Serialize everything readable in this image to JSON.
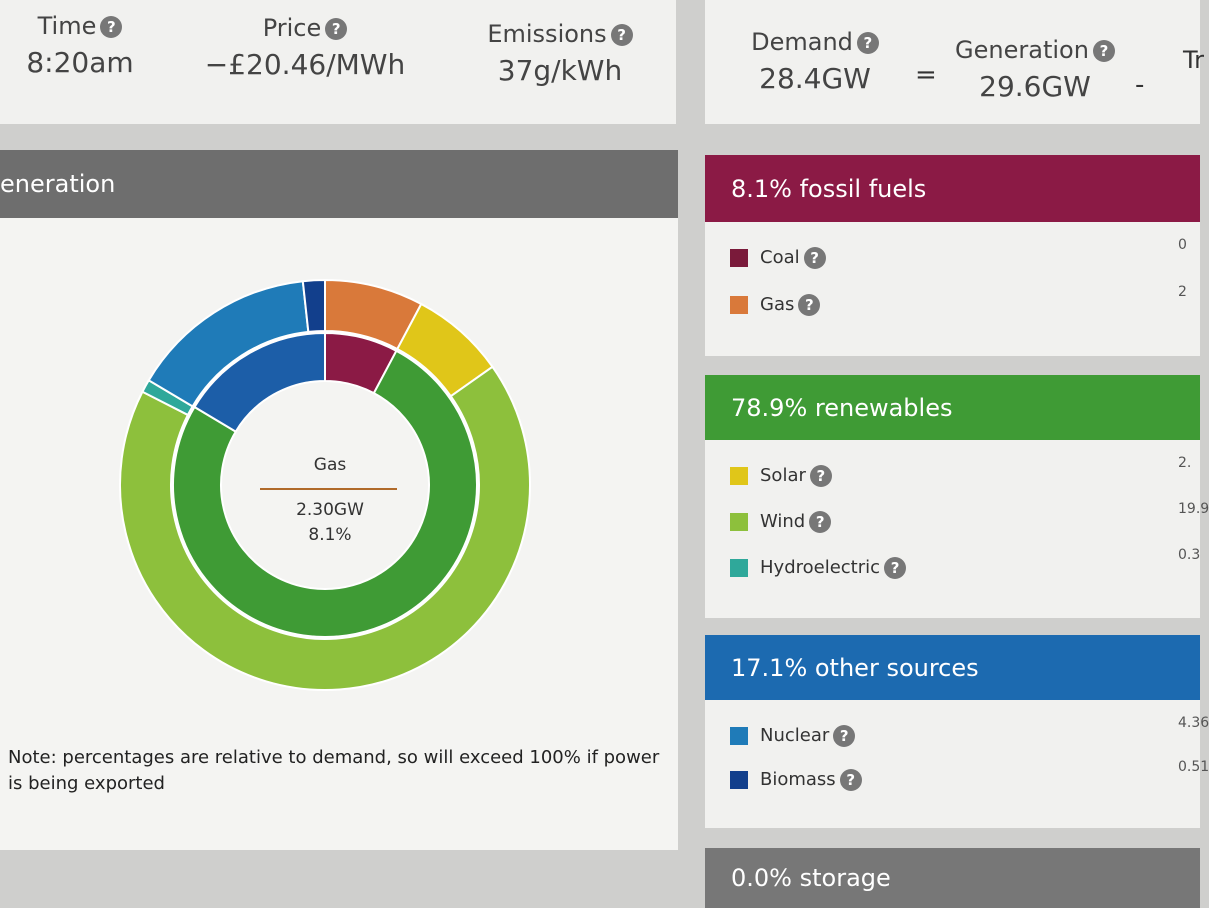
{
  "stats": [
    {
      "label": "Time",
      "value": "8:20am"
    },
    {
      "label": "Price",
      "value": "−£20.46/MWh"
    },
    {
      "label": "Emissions",
      "value": "37g/kWh"
    }
  ],
  "balance": {
    "demand": {
      "label": "Demand",
      "value": "28.4GW"
    },
    "equals": "=",
    "generation": {
      "label": "Generation",
      "value": "29.6GW"
    },
    "minus": "-",
    "next_label": "Tr"
  },
  "generation_panel": {
    "title": "eneration",
    "donut": {
      "outer": {
        "values": [
          0,
          2.3,
          2.2,
          19.9,
          0.3,
          4.36,
          0.51
        ],
        "colors": [
          "#7a1a3a",
          "#d9793a",
          "#e0c619",
          "#8dc03c",
          "#2fa89a",
          "#1f7bb8",
          "#123f8c"
        ]
      },
      "inner": {
        "values": [
          8.1,
          78.9,
          17.1
        ],
        "colors": [
          "#8b1a45",
          "#3f9b35",
          "#1c5ea8"
        ]
      }
    },
    "tooltip": {
      "name": "Gas",
      "power": "2.30GW",
      "share": "8.1%"
    },
    "note": "Note: percentages are relative to demand, so will exceed 100% if power is being exported"
  },
  "groups": [
    {
      "title": "8.1% fossil fuels",
      "color": "#8b1a45",
      "items": [
        {
          "label": "Coal",
          "value": "0",
          "color": "#7a1a3a"
        },
        {
          "label": "Gas",
          "value": "2",
          "color": "#d9793a"
        }
      ]
    },
    {
      "title": "78.9% renewables",
      "color": "#3f9b35",
      "items": [
        {
          "label": "Solar",
          "value": "2.",
          "color": "#e0c619"
        },
        {
          "label": "Wind",
          "value": "19.9",
          "color": "#8dc03c"
        },
        {
          "label": "Hydroelectric",
          "value": "0.3",
          "color": "#2fa89a"
        }
      ]
    },
    {
      "title": "17.1% other sources",
      "color": "#1c6ab0",
      "items": [
        {
          "label": "Nuclear",
          "value": "4.36",
          "color": "#1f7bb8"
        },
        {
          "label": "Biomass",
          "value": "0.51",
          "color": "#123f8c"
        }
      ]
    },
    {
      "title": "0.0% storage",
      "color": "#777777",
      "items": []
    }
  ]
}
